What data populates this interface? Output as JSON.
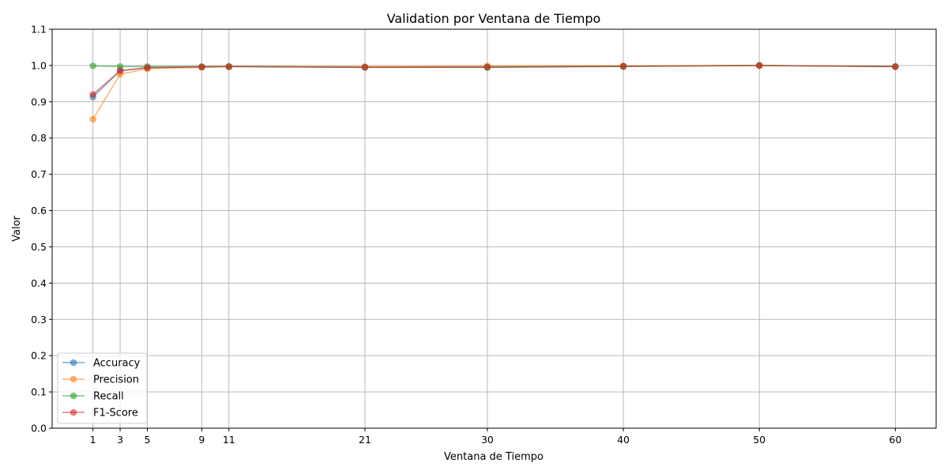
{
  "chart_data": {
    "type": "line",
    "title": "Validation por Ventana de Tiempo",
    "xlabel": "Ventana de Tiempo",
    "ylabel": "Valor",
    "x": [
      1,
      3,
      5,
      9,
      11,
      21,
      30,
      40,
      50,
      60
    ],
    "xticks": [
      "1",
      "3",
      "5",
      "9",
      "11",
      "21",
      "30",
      "40",
      "50",
      "60"
    ],
    "yticks": [
      "0.0",
      "0.1",
      "0.2",
      "0.3",
      "0.4",
      "0.5",
      "0.6",
      "0.7",
      "0.8",
      "0.9",
      "1.0",
      "1.1"
    ],
    "xlim": [
      -2,
      63
    ],
    "ylim": [
      0,
      1.1
    ],
    "grid": true,
    "legend_position": "lower-left",
    "series": [
      {
        "name": "Accuracy",
        "color": "#1f77b4",
        "values": [
          0.913,
          0.985,
          0.994,
          0.996,
          0.997,
          0.995,
          0.995,
          0.998,
          1.0,
          0.997
        ]
      },
      {
        "name": "Precision",
        "color": "#ff7f0e",
        "values": [
          0.852,
          0.976,
          0.991,
          0.995,
          0.997,
          0.997,
          0.999,
          0.999,
          1.0,
          0.997
        ]
      },
      {
        "name": "Recall",
        "color": "#2ca02c",
        "values": [
          0.999,
          0.997,
          0.997,
          0.997,
          0.997,
          0.995,
          0.995,
          0.997,
          1.0,
          0.997
        ]
      },
      {
        "name": "F1-Score",
        "color": "#d62728",
        "values": [
          0.92,
          0.986,
          0.994,
          0.996,
          0.997,
          0.995,
          0.996,
          0.998,
          1.0,
          0.997
        ]
      }
    ]
  }
}
